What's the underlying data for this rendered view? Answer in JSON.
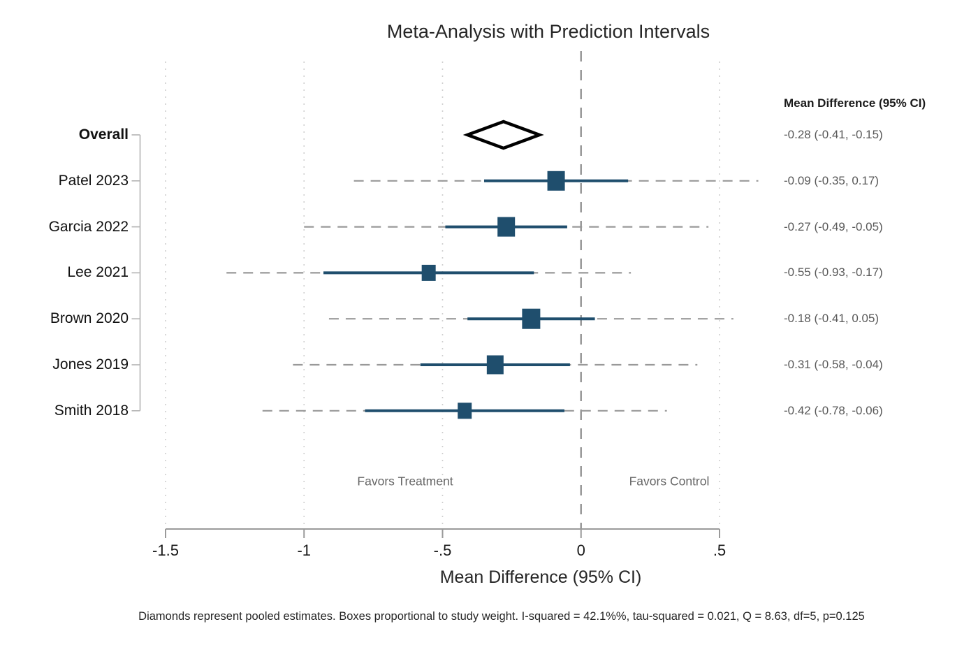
{
  "chart_data": {
    "type": "forest",
    "title": "Meta-Analysis with Prediction Intervals",
    "xlabel": "Mean Difference (95% CI)",
    "column_header": "Mean Difference (95% CI)",
    "x_tick_values": [
      -1.5,
      -1,
      -0.5,
      0,
      0.5
    ],
    "x_tick_labels": [
      "-1.5",
      "-1",
      "-.5",
      "0",
      ".5"
    ],
    "xlim": [
      -1.5,
      0.5
    ],
    "zero_reference": 0,
    "grid": "dotted-vertical",
    "legend_position": "none",
    "annotations": {
      "left": "Favors Treatment",
      "right": "Favors Control"
    },
    "rows": [
      {
        "label": "Overall",
        "kind": "diamond",
        "estimate": -0.28,
        "ci_lower": -0.41,
        "ci_upper": -0.15,
        "ci_text": "-0.28 (-0.41, -0.15)"
      },
      {
        "label": "Patel 2023",
        "kind": "study",
        "estimate": -0.09,
        "ci_lower": -0.35,
        "ci_upper": 0.17,
        "pi_lower": -0.82,
        "pi_upper": 0.64,
        "weight_box": 25,
        "ci_text": "-0.09 (-0.35, 0.17)"
      },
      {
        "label": "Garcia 2022",
        "kind": "study",
        "estimate": -0.27,
        "ci_lower": -0.49,
        "ci_upper": -0.05,
        "pi_lower": -1.0,
        "pi_upper": 0.46,
        "weight_box": 25,
        "ci_text": "-0.27 (-0.49, -0.05)"
      },
      {
        "label": "Lee 2021",
        "kind": "study",
        "estimate": -0.55,
        "ci_lower": -0.93,
        "ci_upper": -0.17,
        "pi_lower": -1.28,
        "pi_upper": 0.18,
        "weight_box": 20,
        "ci_text": "-0.55 (-0.93, -0.17)"
      },
      {
        "label": "Brown 2020",
        "kind": "study",
        "estimate": -0.18,
        "ci_lower": -0.41,
        "ci_upper": 0.05,
        "pi_lower": -0.91,
        "pi_upper": 0.55,
        "weight_box": 26,
        "ci_text": "-0.18 (-0.41, 0.05)"
      },
      {
        "label": "Jones 2019",
        "kind": "study",
        "estimate": -0.31,
        "ci_lower": -0.58,
        "ci_upper": -0.04,
        "pi_lower": -1.04,
        "pi_upper": 0.42,
        "weight_box": 24,
        "ci_text": "-0.31 (-0.58, -0.04)"
      },
      {
        "label": "Smith 2018",
        "kind": "study",
        "estimate": -0.42,
        "ci_lower": -0.78,
        "ci_upper": -0.06,
        "pi_lower": -1.15,
        "pi_upper": 0.31,
        "weight_box": 20,
        "ci_text": "-0.42 (-0.78, -0.06)"
      }
    ],
    "footnote": "Diamonds represent pooled estimates. Boxes proportional to study weight. I-squared = 42.1%%, tau-squared = 0.021, Q = 8.63, df=5, p=0.125",
    "colors": {
      "study": "#1f4e6d",
      "prediction_interval": "#999999",
      "grid": "#cfcfcf",
      "zero_line": "#8a8a8a",
      "diamond_outline": "#000000",
      "axis": "#9a9a9a",
      "left_spine": "#b3b3b3"
    }
  }
}
